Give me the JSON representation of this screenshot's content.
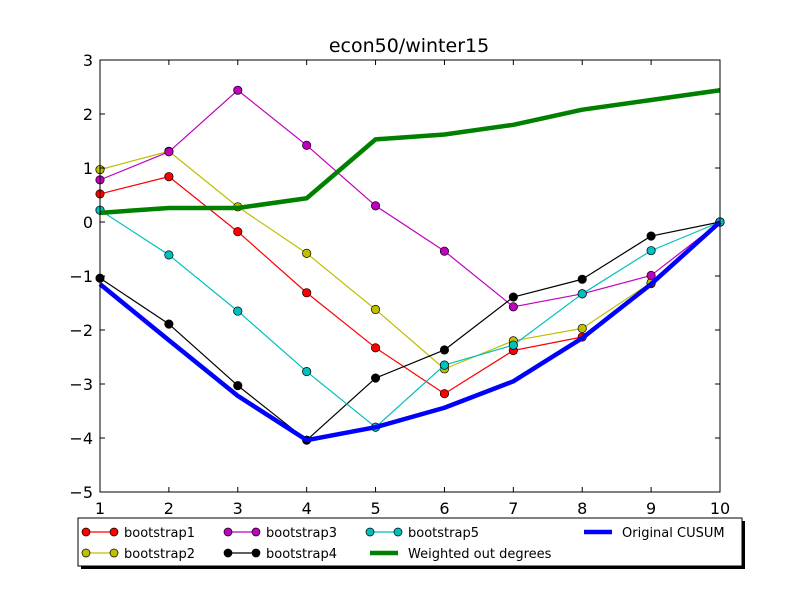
{
  "chart_data": {
    "type": "line",
    "title": "econ50/winter15",
    "xlabel": "",
    "ylabel": "",
    "x": [
      1,
      2,
      3,
      4,
      5,
      6,
      7,
      8,
      9,
      10
    ],
    "xlim": [
      1,
      10
    ],
    "ylim": [
      -5,
      3
    ],
    "xticks": [
      "1",
      "2",
      "3",
      "4",
      "5",
      "6",
      "7",
      "8",
      "9",
      "10"
    ],
    "yticks": [
      "3",
      "2",
      "1",
      "0",
      "−1",
      "−2",
      "−3",
      "−4",
      "−5"
    ],
    "ytick_values": [
      3,
      2,
      1,
      0,
      -1,
      -2,
      -3,
      -4,
      -5
    ],
    "grid": false,
    "legend_placement": "bottom",
    "series": [
      {
        "name": "bootstrap1",
        "color": "#ff0000",
        "marker": "circle",
        "values": [
          0.52,
          0.84,
          -0.18,
          -1.31,
          -2.33,
          -3.18,
          -2.38,
          -2.13,
          -1.14,
          0.0
        ]
      },
      {
        "name": "bootstrap2",
        "color": "#bfbf00",
        "marker": "circle",
        "values": [
          0.97,
          1.31,
          0.28,
          -0.58,
          -1.62,
          -2.72,
          -2.2,
          -1.97,
          -1.12,
          0.0
        ]
      },
      {
        "name": "bootstrap3",
        "color": "#bf00bf",
        "marker": "circle",
        "values": [
          0.78,
          1.3,
          2.44,
          1.42,
          0.3,
          -0.54,
          -1.57,
          -1.33,
          -0.99,
          0.0
        ]
      },
      {
        "name": "bootstrap4",
        "color": "#000000",
        "marker": "circle",
        "values": [
          -1.04,
          -1.89,
          -3.03,
          -4.04,
          -2.89,
          -2.37,
          -1.39,
          -1.06,
          -0.26,
          0.0
        ]
      },
      {
        "name": "bootstrap5",
        "color": "#00bfbf",
        "marker": "circle",
        "values": [
          0.22,
          -0.61,
          -1.65,
          -2.77,
          -3.8,
          -2.65,
          -2.28,
          -1.33,
          -0.53,
          0.0
        ]
      },
      {
        "name": "Weighted out degrees",
        "color": "#008000",
        "marker": "none",
        "values": [
          0.17,
          0.26,
          0.26,
          0.44,
          1.53,
          1.62,
          1.8,
          2.08,
          2.26,
          2.44
        ]
      },
      {
        "name": "Original CUSUM",
        "color": "#0000ff",
        "marker": "none",
        "values": [
          -1.15,
          -2.19,
          -3.22,
          -4.04,
          -3.8,
          -3.44,
          -2.95,
          -2.15,
          -1.15,
          0.0
        ]
      }
    ]
  }
}
